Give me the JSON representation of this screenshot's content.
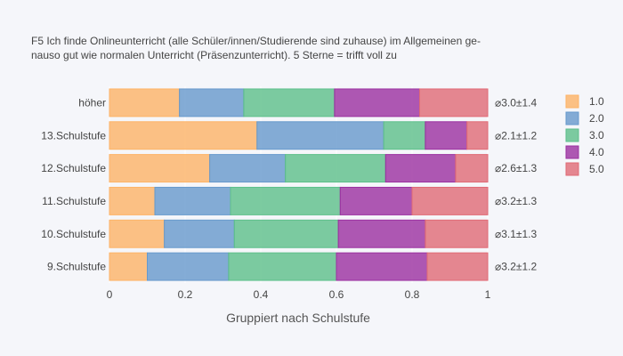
{
  "chart_data": {
    "type": "bar",
    "orientation": "horizontal",
    "stacked": true,
    "title_lines": [
      "F5 Ich finde Onlineunterricht (alle Schüler/innen/Studierende sind zuhause) im Allgemeinen ge-",
      "nauso gut wie normalen Unterricht (Präsenzunterricht). 5 Sterne = trifft voll zu"
    ],
    "xlabel": "Gruppiert nach Schulstufe",
    "ylabel": "",
    "xlim": [
      0,
      1
    ],
    "xticks": [
      0,
      0.2,
      0.4,
      0.6,
      0.8,
      1
    ],
    "xtick_labels": [
      "0",
      "0.2",
      "0.4",
      "0.6",
      "0.8",
      "1"
    ],
    "grid": true,
    "legend_position": "right",
    "categories": [
      "höher",
      "13.Schulstufe",
      "12.Schulstufe",
      "11.Schulstufe",
      "10.Schulstufe",
      "9.Schulstufe"
    ],
    "annotations": [
      "⌀3.0±1.4",
      "⌀2.1±1.2",
      "⌀2.6±1.3",
      "⌀3.2±1.3",
      "⌀3.1±1.3",
      "⌀3.2±1.2"
    ],
    "series": [
      {
        "name": "1.0",
        "color": "#fdb366",
        "values": [
          0.185,
          0.39,
          0.265,
          0.12,
          0.145,
          0.1
        ]
      },
      {
        "name": "2.0",
        "color": "#6699cc",
        "values": [
          0.17,
          0.335,
          0.2,
          0.2,
          0.185,
          0.215
        ]
      },
      {
        "name": "3.0",
        "color": "#5cbf8a",
        "values": [
          0.24,
          0.11,
          0.265,
          0.29,
          0.275,
          0.285
        ]
      },
      {
        "name": "4.0",
        "color": "#9b30a0",
        "values": [
          0.225,
          0.11,
          0.185,
          0.19,
          0.23,
          0.24
        ]
      },
      {
        "name": "5.0",
        "color": "#e06a75",
        "values": [
          0.18,
          0.055,
          0.085,
          0.2,
          0.165,
          0.16
        ]
      }
    ]
  }
}
